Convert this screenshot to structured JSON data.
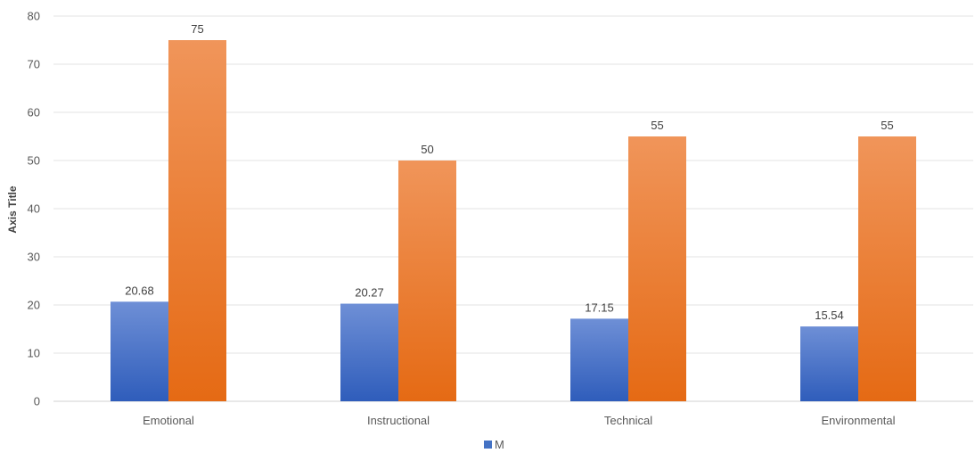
{
  "chart_data": {
    "type": "bar",
    "categories": [
      "Emotional",
      "Instructional",
      "Technical",
      "Environmental"
    ],
    "series": [
      {
        "name": "M",
        "values": [
          20.68,
          20.27,
          17.15,
          15.54
        ],
        "color": "#4472C4"
      },
      {
        "values": [
          75,
          50,
          55,
          55
        ],
        "color": "#ED7D31"
      }
    ],
    "data_labels": [
      [
        "20.68",
        "20.27",
        "17.15",
        "15.54"
      ],
      [
        "75",
        "50",
        "55",
        "55"
      ]
    ],
    "yticks": [
      "0",
      "10",
      "20",
      "30",
      "40",
      "50",
      "60",
      "70",
      "80"
    ],
    "ylim": [
      0,
      80
    ],
    "ylabel": "Axis Title",
    "legend_label": "M",
    "grid": true,
    "legend_position": "bottom"
  }
}
